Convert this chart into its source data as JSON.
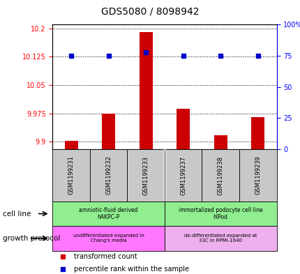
{
  "title": "GDS5080 / 8098942",
  "samples": [
    "GSM1199231",
    "GSM1199232",
    "GSM1199233",
    "GSM1199237",
    "GSM1199238",
    "GSM1199239"
  ],
  "red_values": [
    9.902,
    9.975,
    10.19,
    9.988,
    9.918,
    9.965
  ],
  "blue_values": [
    75,
    75,
    78,
    75,
    75,
    75
  ],
  "ylim_left": [
    9.88,
    10.21
  ],
  "ylim_right": [
    0,
    100
  ],
  "yticks_left": [
    9.9,
    9.975,
    10.05,
    10.125,
    10.2
  ],
  "yticks_right": [
    0,
    25,
    50,
    75,
    100
  ],
  "ytick_labels_left": [
    "9.9",
    "9.975",
    "10.05",
    "10.125",
    "10.2"
  ],
  "ytick_labels_right": [
    "0",
    "25",
    "50",
    "75",
    "100%"
  ],
  "legend_red_label": "transformed count",
  "legend_blue_label": "percentile rank within the sample",
  "cell_line_label": "cell line",
  "growth_protocol_label": "growth protocol",
  "red_color": "#CC0000",
  "blue_color": "#0000CC",
  "bar_bottom": 9.88,
  "cell_line_group1_label": "amniotic-fluid derived\nhAKPC-P",
  "cell_line_group2_label": "immortalized podocyte cell line\nhIPod",
  "cell_line_color1": "#90EE90",
  "cell_line_color2": "#90EE90",
  "growth_group1_label": "undifferentiated expanded in\nChang's media",
  "growth_group2_label": "de-differentiated expanded at\n33C in RPMI-1640",
  "growth_color1": "#FF77FF",
  "growth_color2": "#EEB0EE",
  "sample_bg_color": "#C8C8C8"
}
